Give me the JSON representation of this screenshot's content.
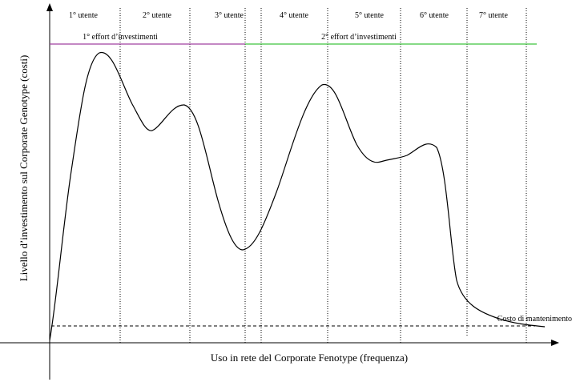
{
  "diagram": {
    "x_axis_label": "Uso in rete del Corporate Fenotype (frequenza)",
    "y_axis_label": "Livello d’investimento sul Corporate Genotype (costi)",
    "user_phases": [
      {
        "label": "1° utente"
      },
      {
        "label": "2° utente"
      },
      {
        "label": "3° utente"
      },
      {
        "label": "4° utente"
      },
      {
        "label": "5° utente"
      },
      {
        "label": "6° utente"
      },
      {
        "label": "7° utente"
      }
    ],
    "investment_efforts": [
      {
        "label": "1° effort d’investimenti",
        "color": "#a040a0"
      },
      {
        "label": "2° effort d’investimenti",
        "color": "#3ec43e"
      }
    ],
    "maintenance_cost_label": "Costo di mantenimento",
    "colors": {
      "curve": "#000000",
      "effort_1": "#a040a0",
      "effort_2": "#3ec43e"
    }
  }
}
